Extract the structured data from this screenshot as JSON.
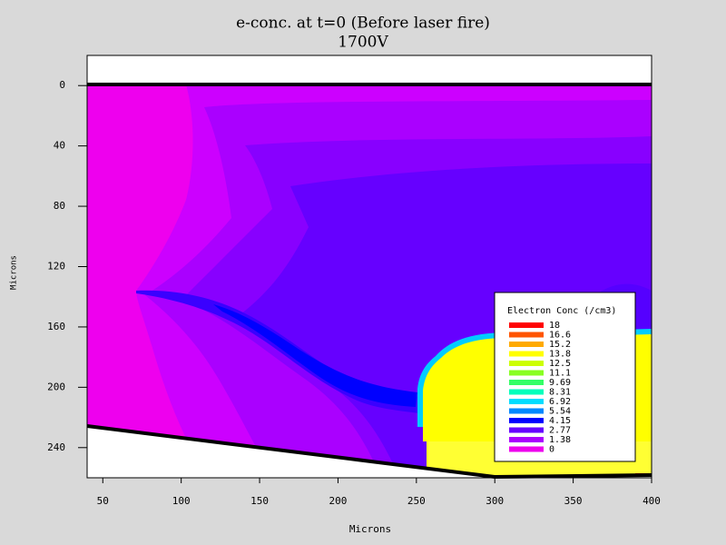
{
  "chart_data": {
    "type": "contour",
    "title": "e-conc. at t=0 (Before laser fire)",
    "subtitle": "1700V",
    "x_label": "Microns",
    "y_label": "Microns",
    "xlim": [
      40,
      400
    ],
    "xticks": [
      50,
      100,
      150,
      200,
      250,
      300,
      350,
      400
    ],
    "ylim": [
      -20,
      260
    ],
    "y_inverted": true,
    "yticks": [
      0,
      40,
      80,
      120,
      160,
      200,
      240
    ],
    "legend": {
      "title": "Electron Conc (/cm3)",
      "levels": [
        18,
        16.6,
        15.2,
        13.8,
        12.5,
        11.1,
        9.69,
        8.31,
        6.92,
        5.54,
        4.15,
        2.77,
        1.38,
        0
      ],
      "colors": [
        "#ff0000",
        "#ff5500",
        "#ffaa00",
        "#ffff00",
        "#ccff00",
        "#88ff22",
        "#33ff66",
        "#00ffbb",
        "#00ddff",
        "#0088ff",
        "#0000ff",
        "#6600ff",
        "#aa00ff",
        "#ee00ee"
      ]
    }
  }
}
